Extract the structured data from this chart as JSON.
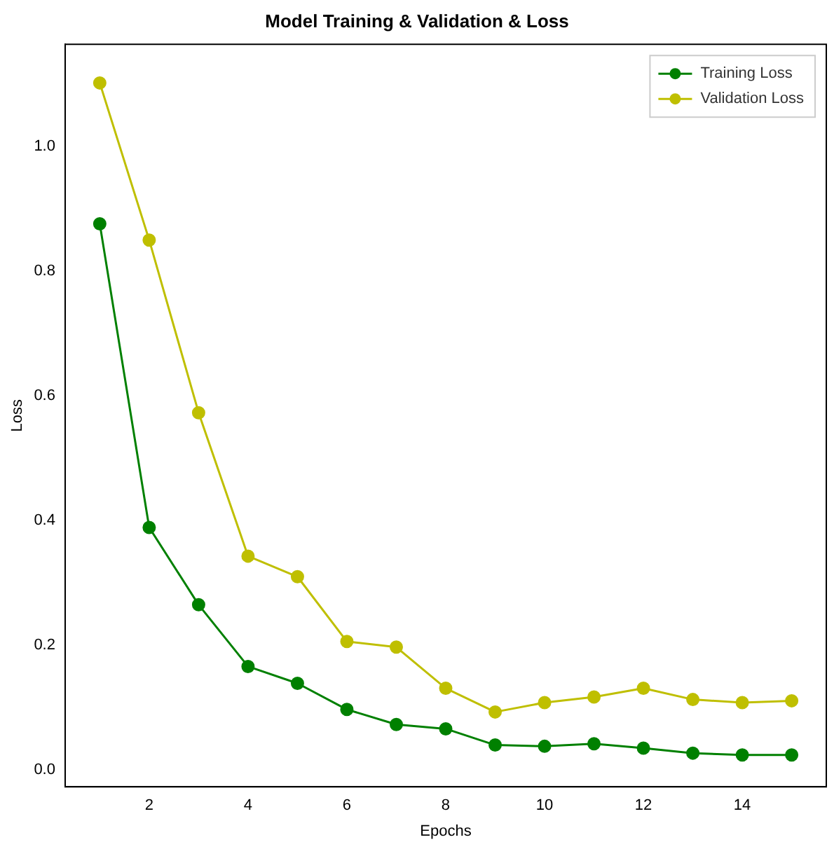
{
  "chart_data": {
    "type": "line",
    "title": "Model Training & Validation & Loss",
    "xlabel": "Epochs",
    "ylabel": "Loss",
    "x": [
      1,
      2,
      3,
      4,
      5,
      6,
      7,
      8,
      9,
      10,
      11,
      12,
      13,
      14,
      15
    ],
    "series": [
      {
        "name": "Training Loss",
        "color": "#008000",
        "values": [
          0.876,
          0.389,
          0.265,
          0.166,
          0.139,
          0.097,
          0.073,
          0.066,
          0.04,
          0.038,
          0.042,
          0.035,
          0.027,
          0.024,
          0.024
        ]
      },
      {
        "name": "Validation Loss",
        "color": "#bfbf00",
        "values": [
          1.102,
          0.85,
          0.573,
          0.343,
          0.31,
          0.206,
          0.197,
          0.131,
          0.093,
          0.108,
          0.117,
          0.131,
          0.113,
          0.108,
          0.111
        ]
      }
    ],
    "xlim": [
      0.3,
      15.7
    ],
    "ylim": [
      -0.027,
      1.164
    ],
    "xticks": [
      2,
      4,
      6,
      8,
      10,
      12,
      14
    ],
    "yticks": [
      {
        "value": 0,
        "label": "0.0"
      },
      0.2,
      0.4,
      0.6,
      0.8,
      {
        "value": 1,
        "label": "1.0"
      }
    ],
    "grid": false,
    "legend": "top right",
    "marker": "circle",
    "line_style": "solid"
  }
}
